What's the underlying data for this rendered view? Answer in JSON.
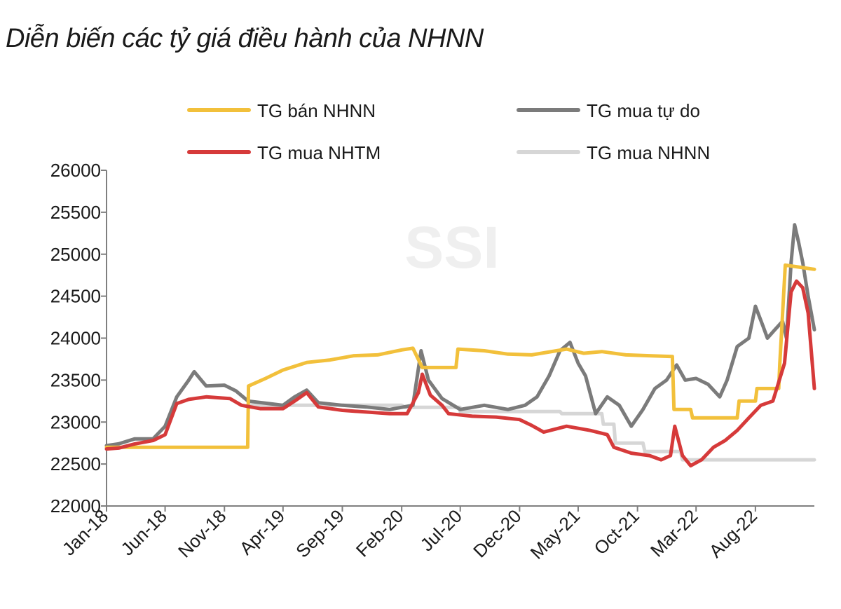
{
  "title": "Diễn biến các tỷ giá điều hành của NHNN",
  "watermark": "SSI",
  "chart_data": {
    "type": "line",
    "title": "Diễn biến các tỷ giá điều hành của NHNN",
    "xlabel": "",
    "ylabel": "",
    "ylim": [
      22000,
      26000
    ],
    "yticks": [
      22000,
      22500,
      23000,
      23500,
      24000,
      24500,
      25000,
      25500,
      26000
    ],
    "xlim": [
      "2018-01",
      "2022-12"
    ],
    "xticks": [
      "Jan-18",
      "Jun-18",
      "Nov-18",
      "Apr-19",
      "Sep-19",
      "Feb-20",
      "Jul-20",
      "Dec-20",
      "May-21",
      "Oct-21",
      "Mar-22",
      "Aug-22"
    ],
    "grid": false,
    "legend_position": "top",
    "series": [
      {
        "name": "TG bán NHNN",
        "color": "#f2c03b",
        "points": [
          [
            "2018-01-01",
            22700
          ],
          [
            "2018-12-31",
            22700
          ],
          [
            "2019-01-02",
            23430
          ],
          [
            "2019-02-15",
            23520
          ],
          [
            "2019-04-01",
            23620
          ],
          [
            "2019-06-01",
            23710
          ],
          [
            "2019-08-01",
            23740
          ],
          [
            "2019-10-01",
            23790
          ],
          [
            "2019-12-01",
            23800
          ],
          [
            "2020-02-01",
            23860
          ],
          [
            "2020-03-01",
            23880
          ],
          [
            "2020-03-25",
            23650
          ],
          [
            "2020-06-20",
            23650
          ],
          [
            "2020-06-25",
            23870
          ],
          [
            "2020-09-01",
            23850
          ],
          [
            "2020-11-01",
            23810
          ],
          [
            "2021-01-01",
            23800
          ],
          [
            "2021-04-01",
            23870
          ],
          [
            "2021-05-15",
            23820
          ],
          [
            "2021-07-01",
            23840
          ],
          [
            "2021-09-01",
            23800
          ],
          [
            "2021-11-01",
            23790
          ],
          [
            "2021-12-30",
            23780
          ],
          [
            "2022-01-03",
            23150
          ],
          [
            "2022-02-15",
            23150
          ],
          [
            "2022-02-20",
            23050
          ],
          [
            "2022-06-15",
            23050
          ],
          [
            "2022-06-20",
            23250
          ],
          [
            "2022-08-01",
            23250
          ],
          [
            "2022-08-05",
            23400
          ],
          [
            "2022-09-30",
            23400
          ],
          [
            "2022-10-03",
            23700
          ],
          [
            "2022-10-17",
            24870
          ],
          [
            "2022-12-31",
            24820
          ]
        ]
      },
      {
        "name": "TG mua tự do",
        "color": "#7b7b7b",
        "points": [
          [
            "2018-01-01",
            22720
          ],
          [
            "2018-02-01",
            22740
          ],
          [
            "2018-03-15",
            22800
          ],
          [
            "2018-05-01",
            22800
          ],
          [
            "2018-06-01",
            22950
          ],
          [
            "2018-07-01",
            23300
          ],
          [
            "2018-08-01",
            23500
          ],
          [
            "2018-08-15",
            23600
          ],
          [
            "2018-09-15",
            23430
          ],
          [
            "2018-11-01",
            23440
          ],
          [
            "2018-12-01",
            23370
          ],
          [
            "2019-01-01",
            23250
          ],
          [
            "2019-04-01",
            23200
          ],
          [
            "2019-05-01",
            23300
          ],
          [
            "2019-06-01",
            23380
          ],
          [
            "2019-07-01",
            23230
          ],
          [
            "2019-09-01",
            23200
          ],
          [
            "2019-11-01",
            23180
          ],
          [
            "2020-01-01",
            23150
          ],
          [
            "2020-03-01",
            23200
          ],
          [
            "2020-03-22",
            23850
          ],
          [
            "2020-04-10",
            23500
          ],
          [
            "2020-05-15",
            23280
          ],
          [
            "2020-07-01",
            23150
          ],
          [
            "2020-09-01",
            23200
          ],
          [
            "2020-11-01",
            23150
          ],
          [
            "2020-12-15",
            23200
          ],
          [
            "2021-01-15",
            23300
          ],
          [
            "2021-02-15",
            23550
          ],
          [
            "2021-03-15",
            23850
          ],
          [
            "2021-04-10",
            23950
          ],
          [
            "2021-05-01",
            23700
          ],
          [
            "2021-05-20",
            23550
          ],
          [
            "2021-06-15",
            23100
          ],
          [
            "2021-07-15",
            23300
          ],
          [
            "2021-08-15",
            23200
          ],
          [
            "2021-09-15",
            22950
          ],
          [
            "2021-10-15",
            23150
          ],
          [
            "2021-11-15",
            23400
          ],
          [
            "2021-12-15",
            23500
          ],
          [
            "2022-01-10",
            23680
          ],
          [
            "2022-02-01",
            23500
          ],
          [
            "2022-03-01",
            23520
          ],
          [
            "2022-04-01",
            23450
          ],
          [
            "2022-05-01",
            23300
          ],
          [
            "2022-05-20",
            23500
          ],
          [
            "2022-06-15",
            23900
          ],
          [
            "2022-07-15",
            24000
          ],
          [
            "2022-08-01",
            24380
          ],
          [
            "2022-08-20",
            24150
          ],
          [
            "2022-09-01",
            24000
          ],
          [
            "2022-09-20",
            24100
          ],
          [
            "2022-10-10",
            24200
          ],
          [
            "2022-10-20",
            24000
          ],
          [
            "2022-11-01",
            24900
          ],
          [
            "2022-11-10",
            25350
          ],
          [
            "2022-11-20",
            25150
          ],
          [
            "2022-12-01",
            24900
          ],
          [
            "2022-12-15",
            24500
          ],
          [
            "2022-12-31",
            24100
          ]
        ]
      },
      {
        "name": "TG mua NHTM",
        "color": "#d63a3a",
        "points": [
          [
            "2018-01-01",
            22680
          ],
          [
            "2018-02-01",
            22690
          ],
          [
            "2018-03-15",
            22740
          ],
          [
            "2018-05-01",
            22780
          ],
          [
            "2018-06-01",
            22850
          ],
          [
            "2018-07-01",
            23220
          ],
          [
            "2018-08-01",
            23270
          ],
          [
            "2018-09-15",
            23300
          ],
          [
            "2018-10-15",
            23290
          ],
          [
            "2018-11-15",
            23280
          ],
          [
            "2018-12-15",
            23200
          ],
          [
            "2019-02-01",
            23160
          ],
          [
            "2019-04-01",
            23160
          ],
          [
            "2019-05-01",
            23250
          ],
          [
            "2019-06-01",
            23350
          ],
          [
            "2019-07-01",
            23180
          ],
          [
            "2019-09-01",
            23140
          ],
          [
            "2019-11-01",
            23120
          ],
          [
            "2020-01-01",
            23100
          ],
          [
            "2020-02-15",
            23100
          ],
          [
            "2020-03-15",
            23350
          ],
          [
            "2020-03-25",
            23570
          ],
          [
            "2020-04-15",
            23320
          ],
          [
            "2020-05-15",
            23200
          ],
          [
            "2020-06-01",
            23100
          ],
          [
            "2020-08-01",
            23070
          ],
          [
            "2020-10-01",
            23060
          ],
          [
            "2020-12-01",
            23030
          ],
          [
            "2021-01-01",
            22960
          ],
          [
            "2021-02-01",
            22880
          ],
          [
            "2021-04-01",
            22950
          ],
          [
            "2021-06-01",
            22900
          ],
          [
            "2021-07-15",
            22850
          ],
          [
            "2021-08-01",
            22700
          ],
          [
            "2021-09-15",
            22630
          ],
          [
            "2021-11-01",
            22600
          ],
          [
            "2021-12-01",
            22550
          ],
          [
            "2021-12-25",
            22600
          ],
          [
            "2022-01-05",
            22950
          ],
          [
            "2022-01-25",
            22600
          ],
          [
            "2022-02-15",
            22480
          ],
          [
            "2022-03-15",
            22550
          ],
          [
            "2022-04-15",
            22700
          ],
          [
            "2022-05-15",
            22780
          ],
          [
            "2022-06-15",
            22900
          ],
          [
            "2022-07-15",
            23050
          ],
          [
            "2022-08-15",
            23200
          ],
          [
            "2022-09-15",
            23250
          ],
          [
            "2022-10-15",
            23700
          ],
          [
            "2022-10-25",
            24200
          ],
          [
            "2022-11-01",
            24550
          ],
          [
            "2022-11-15",
            24680
          ],
          [
            "2022-12-01",
            24600
          ],
          [
            "2022-12-15",
            24300
          ],
          [
            "2022-12-31",
            23400
          ]
        ]
      },
      {
        "name": "TG mua NHNN",
        "color": "#d6d6d6",
        "points": [
          [
            "2018-12-31",
            23200
          ],
          [
            "2020-02-01",
            23200
          ],
          [
            "2020-02-10",
            23175
          ],
          [
            "2020-06-30",
            23175
          ],
          [
            "2020-07-01",
            23125
          ],
          [
            "2021-03-15",
            23125
          ],
          [
            "2021-03-20",
            23100
          ],
          [
            "2021-07-01",
            23100
          ],
          [
            "2021-07-05",
            22975
          ],
          [
            "2021-08-01",
            22975
          ],
          [
            "2021-08-05",
            22750
          ],
          [
            "2021-10-15",
            22750
          ],
          [
            "2021-10-20",
            22650
          ],
          [
            "2022-01-20",
            22650
          ],
          [
            "2022-01-25",
            22550
          ],
          [
            "2022-12-31",
            22550
          ]
        ]
      }
    ]
  }
}
